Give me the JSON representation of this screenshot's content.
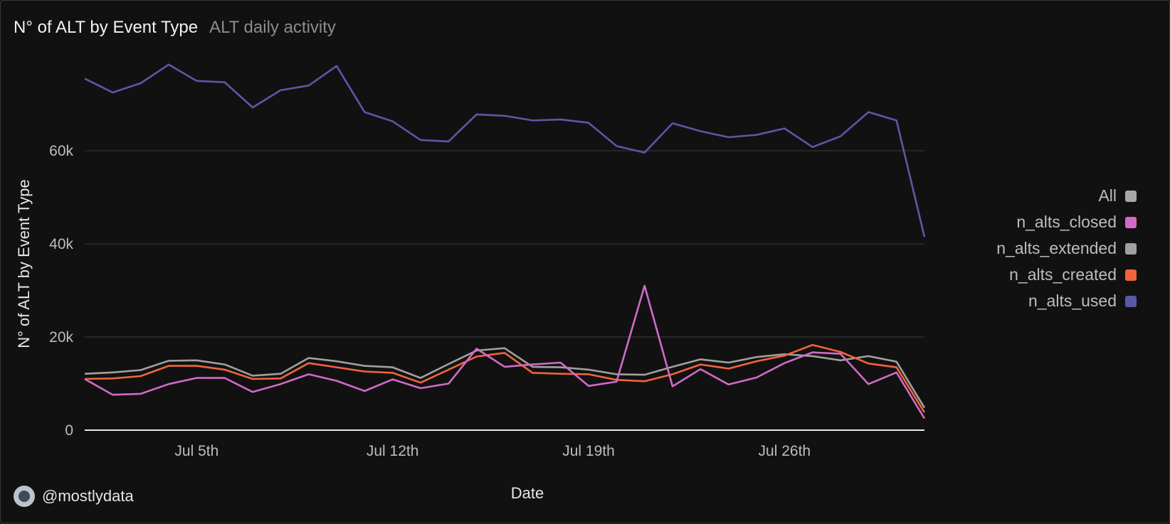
{
  "header": {
    "title": "N° of ALT by Event Type",
    "subtitle": "ALT daily activity"
  },
  "footer": {
    "handle": "@mostlydata"
  },
  "legend": {
    "items": [
      {
        "label": "All",
        "color": "#a8a8a8"
      },
      {
        "label": "n_alts_closed",
        "color": "#d16bc6"
      },
      {
        "label": "n_alts_extended",
        "color": "#a0a0a0"
      },
      {
        "label": "n_alts_created",
        "color": "#f0643c"
      },
      {
        "label": "n_alts_used",
        "color": "#5b58a8"
      }
    ]
  },
  "chart_data": {
    "type": "line",
    "title": "N° of ALT by Event Type",
    "subtitle": "ALT daily activity",
    "xlabel": "Date",
    "ylabel": "N° of ALT by Event Type",
    "x": [
      "Jul 1st",
      "Jul 2nd",
      "Jul 3rd",
      "Jul 4th",
      "Jul 5th",
      "Jul 6th",
      "Jul 7th",
      "Jul 8th",
      "Jul 9th",
      "Jul 10th",
      "Jul 11th",
      "Jul 12th",
      "Jul 13th",
      "Jul 14th",
      "Jul 15th",
      "Jul 16th",
      "Jul 17th",
      "Jul 18th",
      "Jul 19th",
      "Jul 20th",
      "Jul 21st",
      "Jul 22nd",
      "Jul 23rd",
      "Jul 24th",
      "Jul 25th",
      "Jul 26th",
      "Jul 27th",
      "Jul 28th",
      "Jul 29th",
      "Jul 30th",
      "Jul 31st"
    ],
    "x_ticks": [
      "Jul 5th",
      "Jul 12th",
      "Jul 19th",
      "Jul 26th"
    ],
    "y_ticks": [
      0,
      20000,
      40000,
      60000
    ],
    "y_tick_labels": [
      "0",
      "20k",
      "40k",
      "60k"
    ],
    "ylim": [
      0,
      80000
    ],
    "grid": true,
    "legend_position": "right",
    "series": [
      {
        "name": "n_alts_used",
        "color": "#5b58a8",
        "values": [
          75500,
          72500,
          74500,
          78500,
          75000,
          74700,
          69300,
          73000,
          74000,
          78200,
          68300,
          66300,
          62300,
          62000,
          67800,
          67500,
          66500,
          66700,
          66000,
          61000,
          59600,
          65900,
          64200,
          62900,
          63400,
          64800,
          60800,
          63100,
          68300,
          66500,
          41500
        ]
      },
      {
        "name": "n_alts_extended",
        "color": "#a0a0a0",
        "values": [
          12100,
          12400,
          12900,
          14900,
          15000,
          14100,
          11700,
          12100,
          15500,
          14800,
          13800,
          13500,
          11200,
          14200,
          17100,
          17600,
          13600,
          13500,
          13000,
          12000,
          11900,
          13600,
          15200,
          14500,
          15700,
          16300,
          15900,
          15000,
          15900,
          14700,
          4800
        ]
      },
      {
        "name": "n_alts_created",
        "color": "#f0643c",
        "values": [
          11000,
          11100,
          11600,
          13800,
          13800,
          13000,
          11000,
          11100,
          14400,
          13500,
          12600,
          12300,
          10200,
          13000,
          15800,
          16600,
          12300,
          12100,
          12000,
          10800,
          10500,
          12000,
          14100,
          13200,
          14800,
          16000,
          18300,
          16800,
          14300,
          13500,
          3800
        ]
      },
      {
        "name": "n_alts_closed",
        "color": "#d16bc6",
        "values": [
          11000,
          7600,
          7800,
          9900,
          11200,
          11200,
          8200,
          9900,
          12000,
          10600,
          8400,
          10900,
          9000,
          10000,
          17500,
          13600,
          14100,
          14500,
          9500,
          10400,
          31000,
          9400,
          13100,
          9800,
          11300,
          14400,
          16700,
          16400,
          9900,
          12400,
          2500
        ]
      }
    ]
  }
}
